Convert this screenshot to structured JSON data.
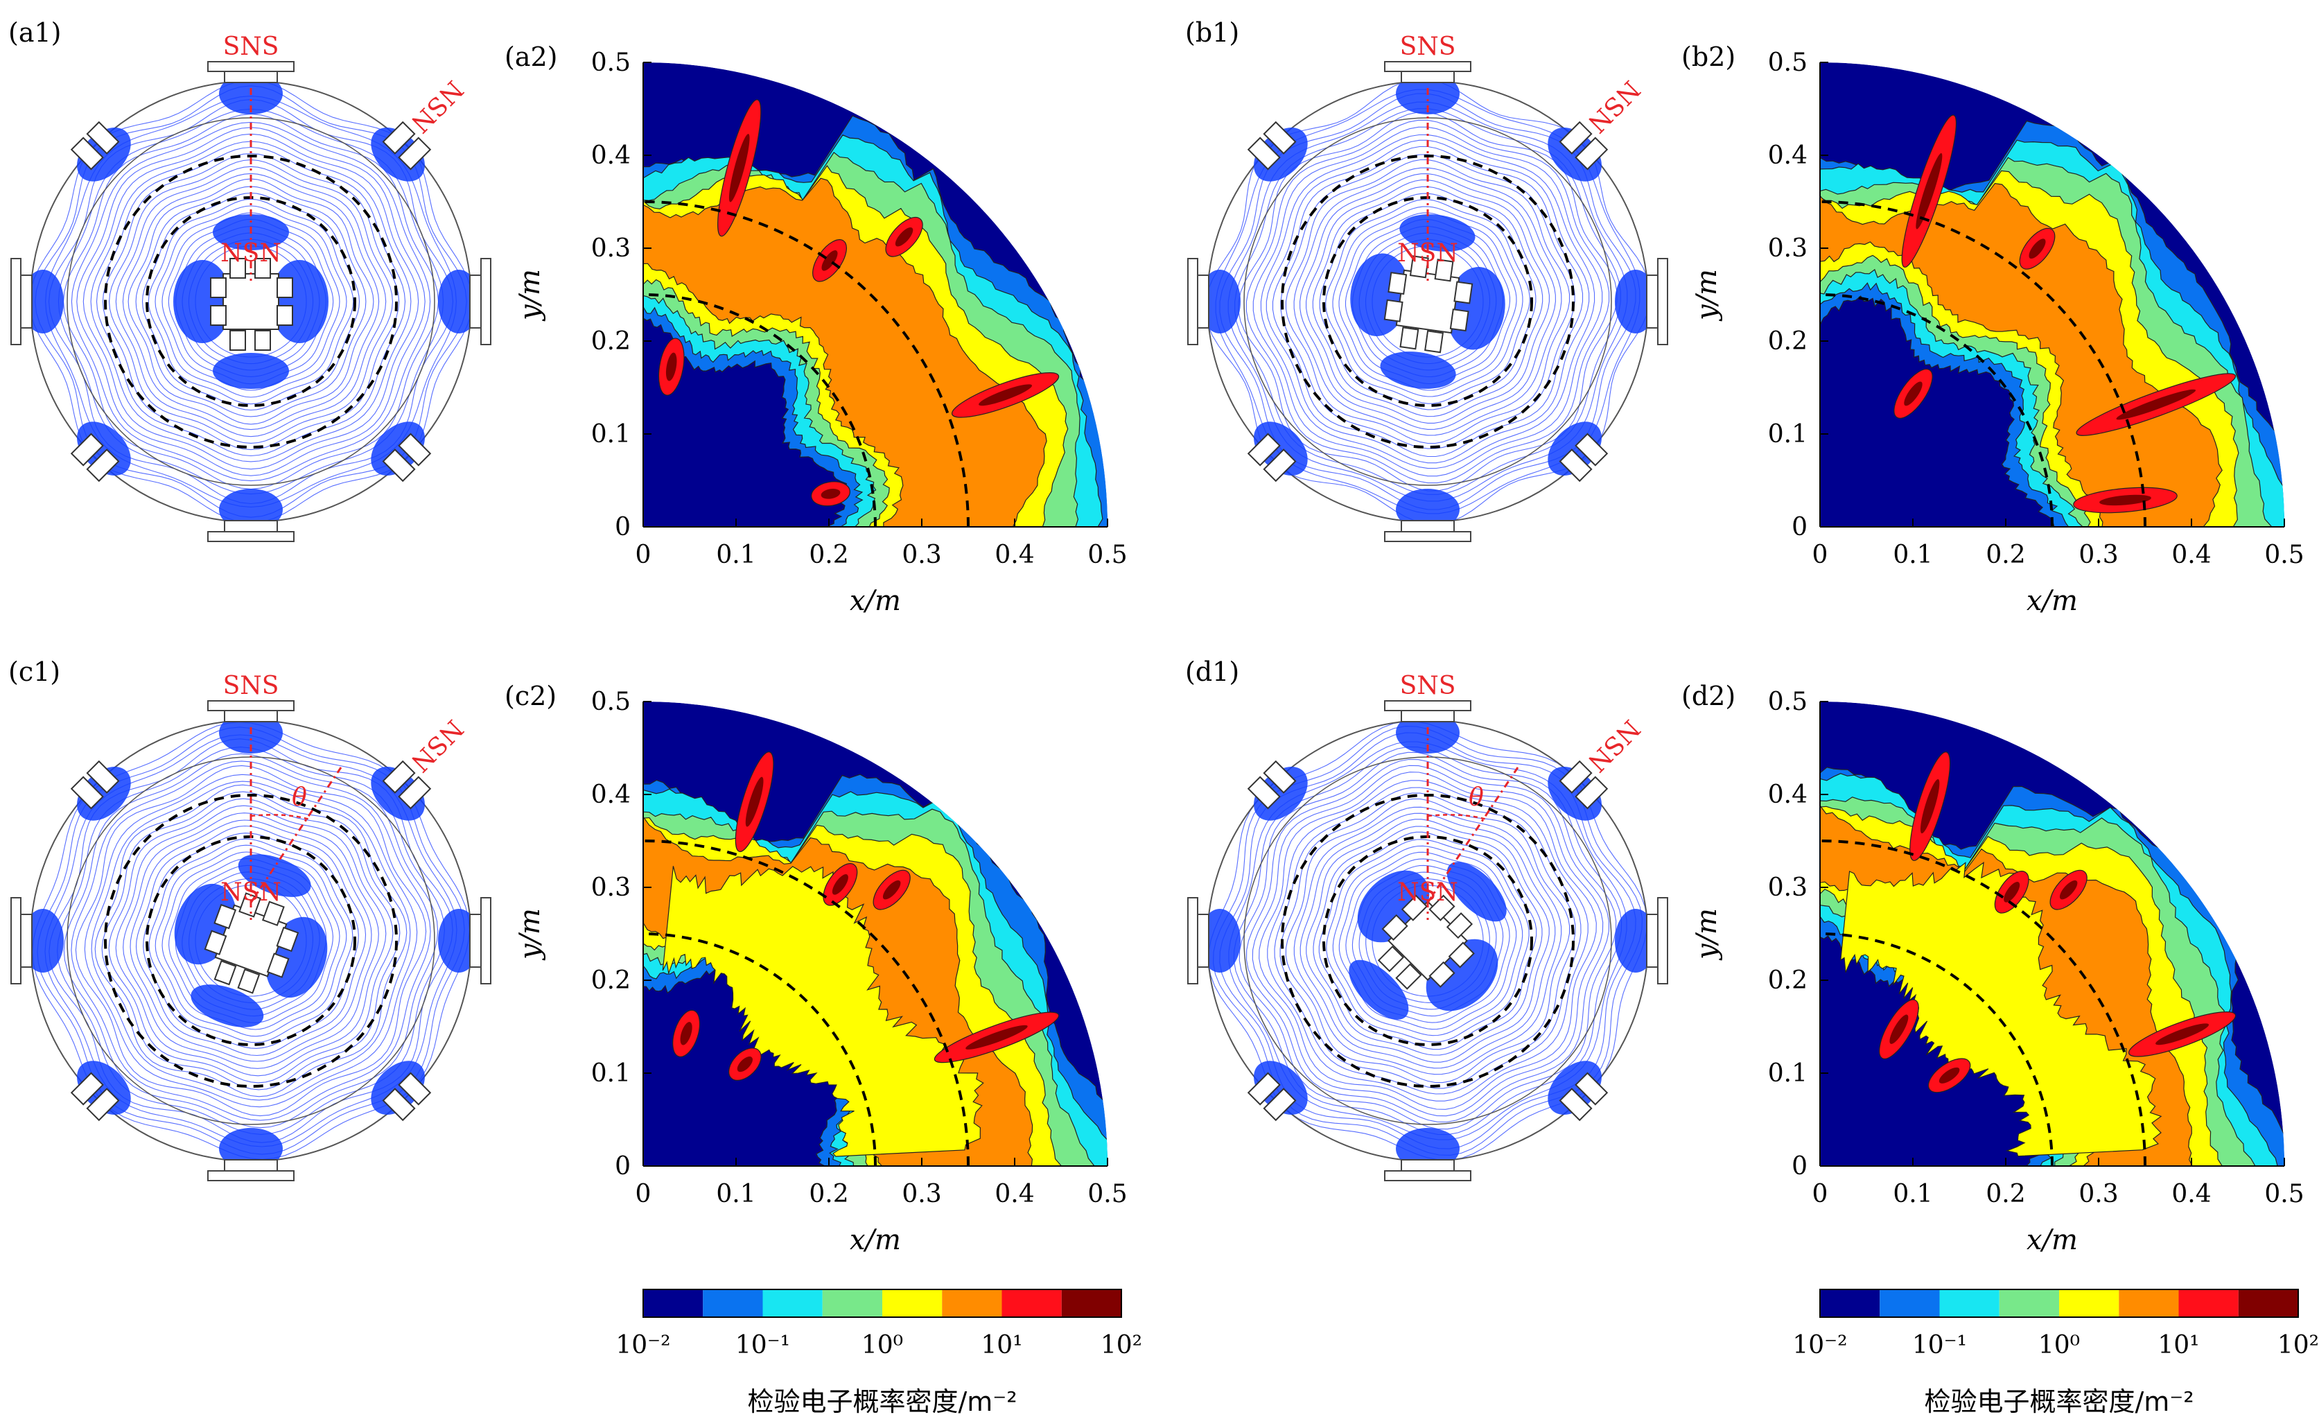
{
  "colors": {
    "levels": [
      "#00008f",
      "#0a73f0",
      "#18e6f2",
      "#78e88a",
      "#ffff00",
      "#ff8c00",
      "#ff0f1a",
      "#800000"
    ],
    "field_line": "#1e3cff",
    "magnet_core": "#1040ff",
    "annotation_red": "#e8262a",
    "boundary_dashed": "#000000"
  },
  "schematics": [
    {
      "label": "(a1)",
      "outer_label": "SNS",
      "inner_label": "NSN",
      "diag_label": "NSN",
      "theta": ""
    },
    {
      "label": "(b1)",
      "outer_label": "SNS",
      "inner_label": "NSN",
      "diag_label": "NSN",
      "theta": ""
    },
    {
      "label": "(c1)",
      "outer_label": "SNS",
      "inner_label": "NSN",
      "diag_label": "NSN",
      "theta": "θ"
    },
    {
      "label": "(d1)",
      "outer_label": "SNS",
      "inner_label": "NSN",
      "diag_label": "NSN",
      "theta": "θ"
    }
  ],
  "chart_data": [
    {
      "type": "heatmap",
      "label": "(a2)",
      "xlabel": "x/m",
      "ylabel": "y/m",
      "xlim": [
        0,
        0.5
      ],
      "ylim": [
        0,
        0.5
      ],
      "xticks": [
        "0",
        "0.1",
        "0.2",
        "0.3",
        "0.4",
        "0.5"
      ],
      "yticks": [
        "0",
        "0.1",
        "0.2",
        "0.3",
        "0.4",
        "0.5"
      ],
      "domain": "quarter disk of radius 0.5 m",
      "dashed_circles_r": [
        0.25,
        0.35
      ],
      "hotspots": [
        {
          "angle_deg": 75,
          "r": [
            0.33,
            0.47
          ],
          "level": 7
        },
        {
          "angle_deg": 55,
          "r": [
            0.33,
            0.37
          ],
          "level": 7
        },
        {
          "angle_deg": 48,
          "r": [
            0.4,
            0.44
          ],
          "level": 7
        },
        {
          "angle_deg": 20,
          "r": [
            0.36,
            0.47
          ],
          "level": 7
        },
        {
          "angle_deg": 10,
          "r": [
            0.19,
            0.22
          ],
          "level": 7
        },
        {
          "angle_deg": 80,
          "r": [
            0.15,
            0.2
          ],
          "level": 7
        }
      ]
    },
    {
      "type": "heatmap",
      "label": "(b2)",
      "xlabel": "x/m",
      "ylabel": "y/m",
      "xlim": [
        0,
        0.5
      ],
      "ylim": [
        0,
        0.5
      ],
      "xticks": [
        "0",
        "0.1",
        "0.2",
        "0.3",
        "0.4",
        "0.5"
      ],
      "yticks": [
        "0",
        "0.1",
        "0.2",
        "0.3",
        "0.4",
        "0.5"
      ],
      "domain": "quarter disk of radius 0.5 m",
      "dashed_circles_r": [
        0.25,
        0.35
      ],
      "hotspots": [
        {
          "angle_deg": 72,
          "r": [
            0.3,
            0.46
          ],
          "level": 7
        },
        {
          "angle_deg": 52,
          "r": [
            0.36,
            0.4
          ],
          "level": 7
        },
        {
          "angle_deg": 20,
          "r": [
            0.3,
            0.47
          ],
          "level": 7
        },
        {
          "angle_deg": 5,
          "r": [
            0.28,
            0.38
          ],
          "level": 7
        },
        {
          "angle_deg": 55,
          "r": [
            0.15,
            0.2
          ],
          "level": 7
        }
      ]
    },
    {
      "type": "heatmap",
      "label": "(c2)",
      "xlabel": "x/m",
      "ylabel": "y/m",
      "xlim": [
        0,
        0.5
      ],
      "ylim": [
        0,
        0.5
      ],
      "xticks": [
        "0",
        "0.1",
        "0.2",
        "0.3",
        "0.4",
        "0.5"
      ],
      "yticks": [
        "0",
        "0.1",
        "0.2",
        "0.3",
        "0.4",
        "0.5"
      ],
      "domain": "quarter disk of radius 0.5 m",
      "dashed_circles_r": [
        0.25,
        0.35
      ],
      "hotspots": [
        {
          "angle_deg": 73,
          "r": [
            0.36,
            0.46
          ],
          "level": 7
        },
        {
          "angle_deg": 55,
          "r": [
            0.35,
            0.39
          ],
          "level": 7
        },
        {
          "angle_deg": 48,
          "r": [
            0.38,
            0.42
          ],
          "level": 7
        },
        {
          "angle_deg": 20,
          "r": [
            0.34,
            0.47
          ],
          "level": 7
        },
        {
          "angle_deg": 72,
          "r": [
            0.13,
            0.17
          ],
          "level": 7
        },
        {
          "angle_deg": 45,
          "r": [
            0.14,
            0.17
          ],
          "level": 7
        }
      ]
    },
    {
      "type": "heatmap",
      "label": "(d2)",
      "xlabel": "x/m",
      "ylabel": "y/m",
      "xlim": [
        0,
        0.5
      ],
      "ylim": [
        0,
        0.5
      ],
      "xticks": [
        "0",
        "0.1",
        "0.2",
        "0.3",
        "0.4",
        "0.5"
      ],
      "yticks": [
        "0",
        "0.1",
        "0.2",
        "0.3",
        "0.4",
        "0.5"
      ],
      "domain": "quarter disk of radius 0.5 m",
      "dashed_circles_r": [
        0.25,
        0.35
      ],
      "hotspots": [
        {
          "angle_deg": 73,
          "r": [
            0.35,
            0.46
          ],
          "level": 7
        },
        {
          "angle_deg": 55,
          "r": [
            0.34,
            0.38
          ],
          "level": 7
        },
        {
          "angle_deg": 48,
          "r": [
            0.38,
            0.42
          ],
          "level": 7
        },
        {
          "angle_deg": 20,
          "r": [
            0.36,
            0.47
          ],
          "level": 7
        },
        {
          "angle_deg": 60,
          "r": [
            0.14,
            0.2
          ],
          "level": 7
        },
        {
          "angle_deg": 35,
          "r": [
            0.15,
            0.19
          ],
          "level": 7
        }
      ]
    }
  ],
  "colorbar": {
    "tick_labels": [
      "10⁻²",
      "10⁻¹",
      "10⁰",
      "10¹",
      "10²"
    ],
    "title": "检验电子概率密度/m⁻²"
  }
}
